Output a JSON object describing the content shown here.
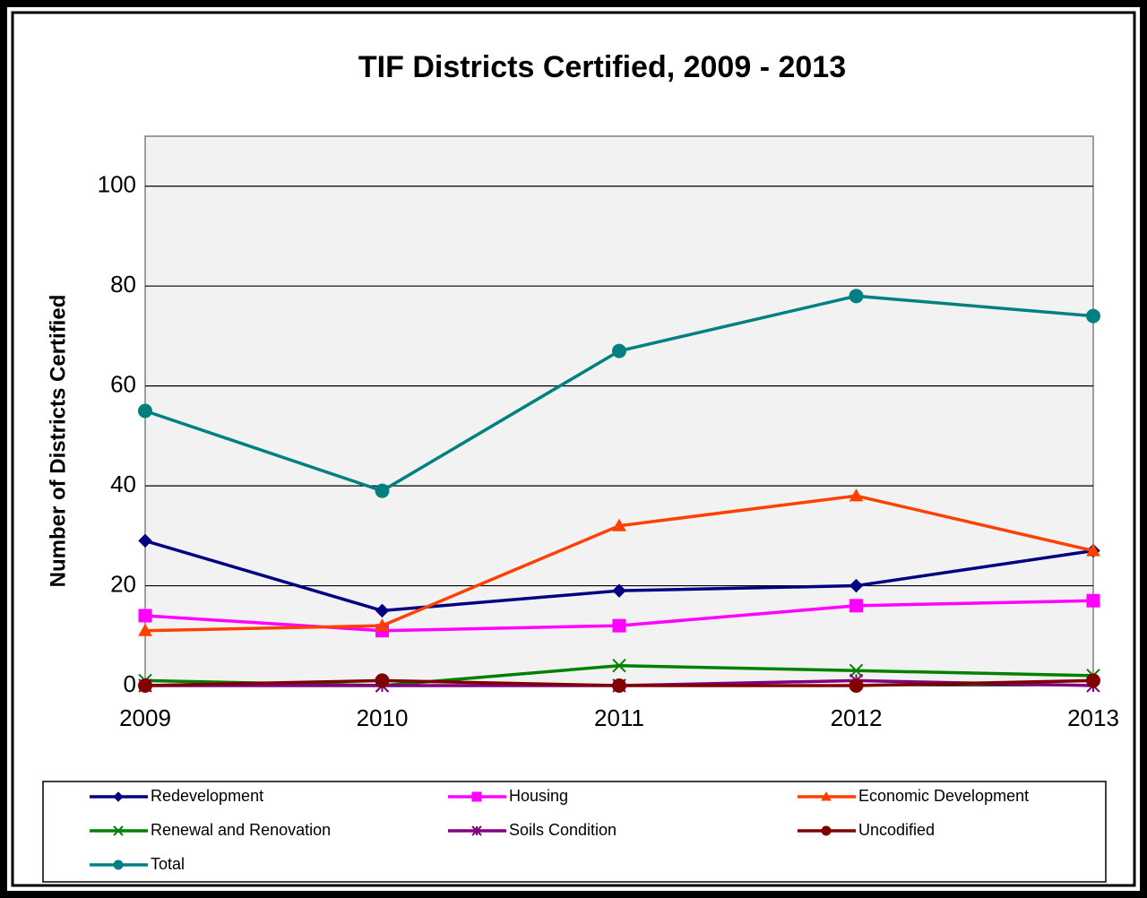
{
  "chart_data": {
    "type": "line",
    "title": "TIF Districts Certified, 2009 - 2013",
    "y_label": "Number of Districts Certified",
    "categories": [
      "2009",
      "2010",
      "2011",
      "2012",
      "2013"
    ],
    "ylim": [
      0,
      110
    ],
    "yticks": [
      0,
      20,
      40,
      60,
      80,
      100
    ],
    "grid": true,
    "legend": "bottom",
    "series": [
      {
        "name": "Redevelopment",
        "color": "#000080",
        "marker": "diamond",
        "values": [
          29,
          15,
          19,
          20,
          27
        ]
      },
      {
        "name": "Housing",
        "color": "#ff00ff",
        "marker": "square",
        "values": [
          14,
          11,
          12,
          16,
          17
        ]
      },
      {
        "name": "Economic Development",
        "color": "#ff4000",
        "marker": "triangle",
        "values": [
          11,
          12,
          32,
          38,
          27
        ]
      },
      {
        "name": "Renewal and Renovation",
        "color": "#008000",
        "marker": "x",
        "values": [
          1,
          0,
          4,
          3,
          2
        ]
      },
      {
        "name": "Soils Condition",
        "color": "#800080",
        "marker": "star",
        "values": [
          0,
          0,
          0,
          1,
          0
        ]
      },
      {
        "name": "Uncodified",
        "color": "#800000",
        "marker": "circle",
        "values": [
          0,
          1,
          0,
          0,
          1
        ]
      },
      {
        "name": "Total",
        "color": "#008080",
        "marker": "circle",
        "values": [
          55,
          39,
          67,
          78,
          74
        ]
      }
    ]
  }
}
